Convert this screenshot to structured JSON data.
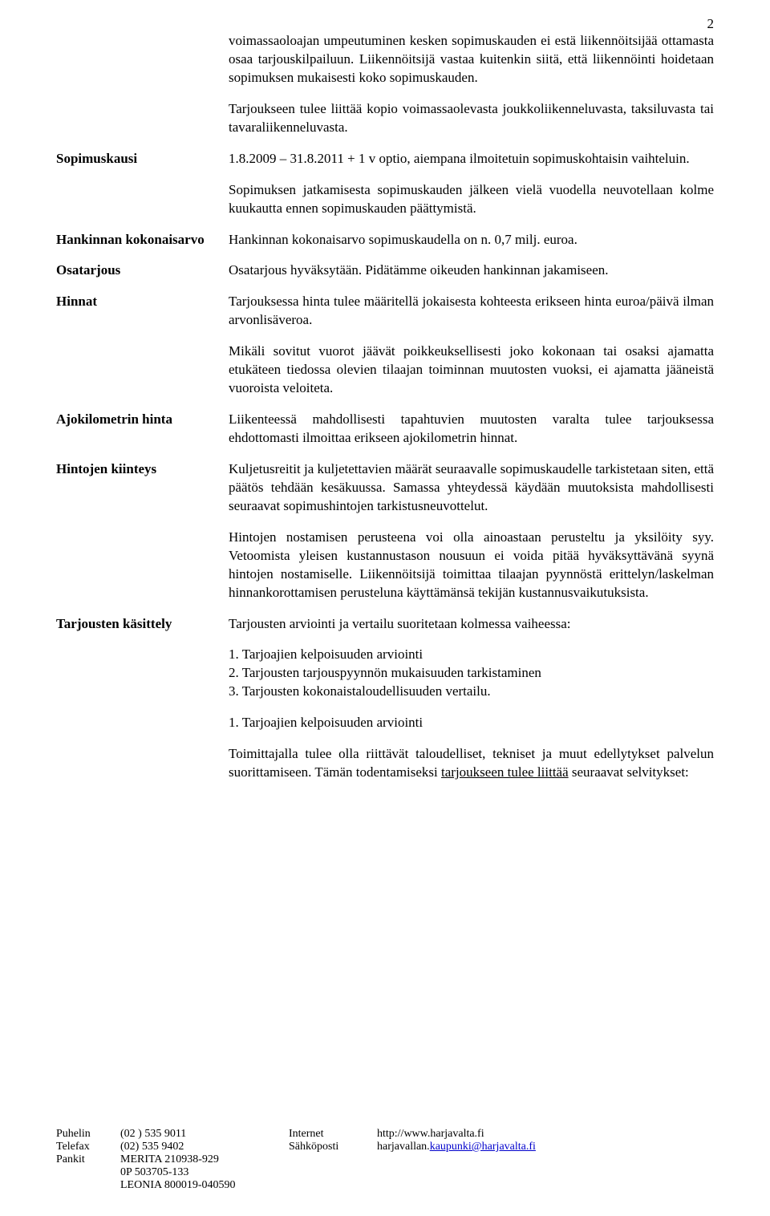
{
  "page_number": "2",
  "intro": {
    "p1": "voimassaoloajan umpeutuminen kesken sopimuskauden ei estä liikennöitsijää ottamasta osaa tarjouskilpailuun. Liikennöitsijä vastaa kuitenkin siitä, että liikennöinti hoidetaan sopimuksen mukaisesti koko sopimuskauden.",
    "p2": "Tarjoukseen tulee liittää kopio voimassaolevasta joukkoliikenneluvasta, taksiluvasta tai tavaraliikenneluvasta."
  },
  "sections": {
    "sopimuskausi": {
      "label": "Sopimuskausi",
      "p1": "1.8.2009 – 31.8.2011 + 1 v optio, aiempana ilmoitetuin sopimuskohtaisin vaihteluin.",
      "p2": "Sopimuksen jatkamisesta sopimuskauden jälkeen vielä vuodella neuvotellaan kolme kuukautta ennen sopimuskauden päättymistä."
    },
    "hankinnan": {
      "label": "Hankinnan kokonaisarvo",
      "p1": "Hankinnan kokonaisarvo sopimuskaudella on n. 0,7 milj. euroa."
    },
    "osatarjous": {
      "label": "Osatarjous",
      "p1": "Osatarjous hyväksytään. Pidätämme oikeuden hankinnan jakamiseen."
    },
    "hinnat": {
      "label": "Hinnat",
      "p1": "Tarjouksessa hinta tulee määritellä jokaisesta kohteesta erikseen hinta euroa/päivä ilman arvonlisäveroa.",
      "p2": "Mikäli sovitut vuorot jäävät poikkeuksellisesti joko kokonaan tai osaksi ajamatta etukäteen tiedossa olevien tilaajan toiminnan muutosten vuoksi, ei ajamatta jääneistä vuoroista veloiteta."
    },
    "ajokilometrin": {
      "label": "Ajokilometrin hinta",
      "p1": "Liikenteessä mahdollisesti tapahtuvien muutosten varalta tulee tarjouksessa ehdottomasti ilmoittaa erikseen ajokilometrin hinnat."
    },
    "hintojen": {
      "label": "Hintojen kiinteys",
      "p1": "Kuljetusreitit ja kuljetettavien määrät seuraavalle sopimuskaudelle tarkistetaan siten, että päätös tehdään kesäkuussa. Samassa yhteydessä käydään muutoksista mahdollisesti seuraavat sopimushintojen tarkistusneuvottelut.",
      "p2": "Hintojen nostamisen perusteena voi olla ainoastaan perusteltu ja yksilöity syy. Vetoomista yleisen kustannustason nousuun ei voida pitää hyväksyttävänä syynä hintojen nostamiselle. Liikennöitsijä toimittaa tilaajan pyynnöstä erittelyn/laskelman hinnankorottamisen perusteluna käyttämänsä tekijän kustannusvaikutuksista."
    },
    "tarjousten": {
      "label": "Tarjousten käsittely",
      "p1": "Tarjousten arviointi ja vertailu suoritetaan kolmessa vaiheessa:",
      "list": {
        "i1": "1. Tarjoajien kelpoisuuden arviointi",
        "i2": "2. Tarjousten tarjouspyynnön mukaisuuden tarkistaminen",
        "i3": "3. Tarjousten kokonaistaloudellisuuden vertailu."
      },
      "sub_heading": "1.  Tarjoajien kelpoisuuden arviointi",
      "p2a": "Toimittajalla tulee olla riittävät taloudelliset, tekniset ja muut edellytykset palvelun suorittamiseen. Tämän todentamiseksi ",
      "p2b": "tarjoukseen tulee liittää",
      "p2c": " seuraavat selvitykset:"
    }
  },
  "footer": {
    "col1": {
      "l1": "Puhelin",
      "l2": "Telefax",
      "l3": "Pankit"
    },
    "col2": {
      "l1": "(02 )  535 9011",
      "l2": "(02)  535 9402",
      "l3": "MERITA   210938-929",
      "l4": "0P          503705-133",
      "l5": "LEONIA   800019-040590"
    },
    "col3": {
      "l1": "Internet",
      "l2": "Sähköposti"
    },
    "col4": {
      "l1": "http://www.harjavalta.fi",
      "l2a": "harjavallan.",
      "l2b": "kaupunki@harjavalta.fi"
    }
  }
}
